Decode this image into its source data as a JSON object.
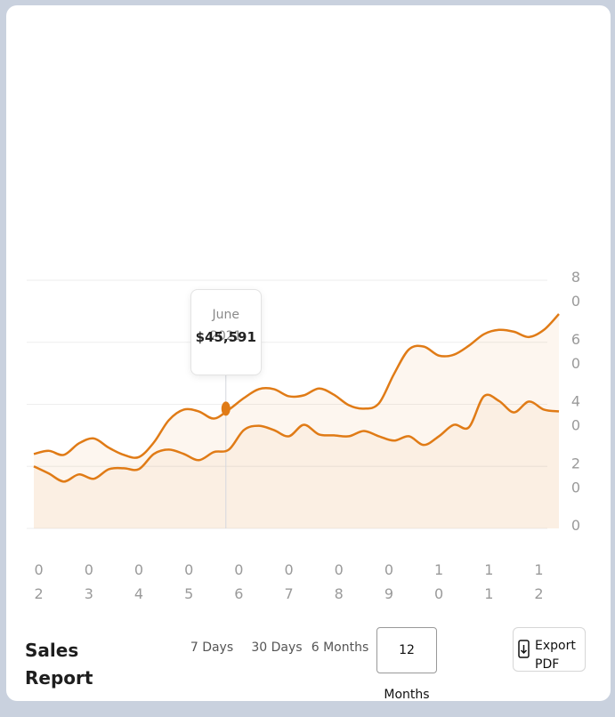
{
  "chart_data": {
    "type": "line",
    "x": [
      1.9,
      2.2,
      2.5,
      2.8,
      3.1,
      3.4,
      3.7,
      4.0,
      4.3,
      4.6,
      4.9,
      5.2,
      5.5,
      5.8,
      6.1,
      6.4,
      6.7,
      7.0,
      7.3,
      7.6,
      7.9,
      8.2,
      8.5,
      8.8,
      9.1,
      9.4,
      9.7,
      10.0,
      10.3,
      10.6,
      10.9,
      11.2,
      11.5,
      11.8,
      12.1,
      12.4
    ],
    "series": [
      {
        "color": "#e07b16",
        "values": [
          24,
          25,
          23.7,
          27.4,
          29,
          26,
          23.7,
          23,
          27.7,
          34.9,
          38.3,
          37.7,
          35.4,
          38.3,
          42,
          44.9,
          44.9,
          42.6,
          42.9,
          45.1,
          43.1,
          39.7,
          38.6,
          40.3,
          49.7,
          57.7,
          58.6,
          55.7,
          56,
          58.9,
          62.6,
          64,
          63.4,
          61.7,
          64,
          69.1
        ]
      },
      {
        "color": "#e07b16",
        "values": [
          20,
          17.7,
          15.1,
          17.4,
          16,
          19.1,
          19.4,
          19.1,
          24,
          25.4,
          24,
          22,
          24.6,
          25.4,
          31.7,
          33.1,
          31.7,
          29.7,
          33.4,
          30.3,
          30,
          29.7,
          31.4,
          29.7,
          28.3,
          29.7,
          26.9,
          29.7,
          33.4,
          32.6,
          42.6,
          41.1,
          37.4,
          40.9,
          38.3,
          37.7
        ]
      }
    ],
    "xlim": [
      1.9,
      12.4
    ],
    "xticks": [
      {
        "value": 2,
        "label": "02"
      },
      {
        "value": 3,
        "label": "03"
      },
      {
        "value": 4,
        "label": "04"
      },
      {
        "value": 5,
        "label": "05"
      },
      {
        "value": 6,
        "label": "06"
      },
      {
        "value": 7,
        "label": "07"
      },
      {
        "value": 8,
        "label": "08"
      },
      {
        "value": 9,
        "label": "09"
      },
      {
        "value": 10,
        "label": "10"
      },
      {
        "value": 11,
        "label": "11"
      },
      {
        "value": 12,
        "label": "12"
      }
    ],
    "ylim": [
      0,
      80
    ],
    "yticks": [
      0,
      20,
      40,
      60,
      80
    ],
    "grid": true,
    "highlight": {
      "x": 5.74,
      "y": 38.6,
      "title": "June 2021",
      "text": "$45,591"
    }
  },
  "controls": {
    "title": "Sales Report",
    "ranges": [
      "7 Days",
      "30 Days",
      "6 Months",
      "12 Months"
    ],
    "active": 3,
    "export": "Export PDF"
  }
}
